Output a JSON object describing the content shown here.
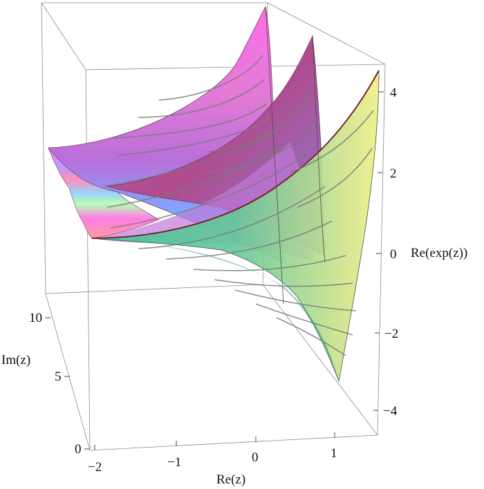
{
  "chart_data": {
    "type": "surface3d",
    "function": "Re(exp(z))",
    "axes": {
      "x": {
        "label": "Re(z)",
        "range": [
          -2,
          1.5
        ],
        "ticks": [
          "−2",
          "−1",
          "0",
          "1"
        ]
      },
      "y": {
        "label": "Im(z)",
        "range": [
          0,
          12
        ],
        "ticks": [
          "0",
          "5",
          "10"
        ]
      },
      "z": {
        "label": "Re(exp(z))",
        "range": [
          -4.5,
          4.5
        ],
        "ticks": [
          "−4",
          "−2",
          "0",
          "2",
          "4"
        ]
      }
    },
    "coloring": "hue by Im(z)",
    "mesh": "contours along Re(z)",
    "box": true
  }
}
